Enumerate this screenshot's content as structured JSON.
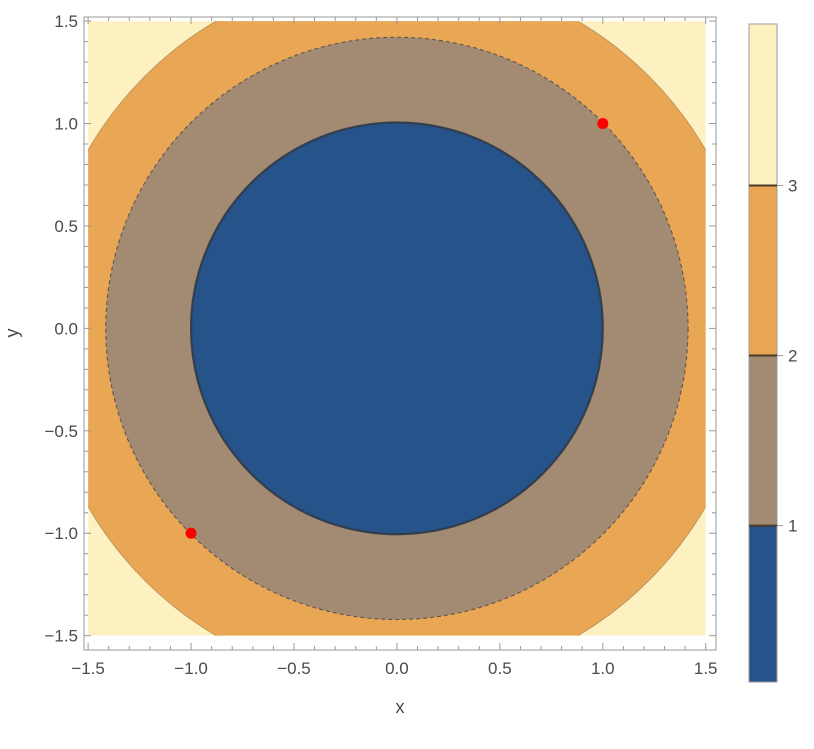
{
  "chart_data": {
    "type": "contour",
    "function": "x^2 + y^2",
    "xlabel": "x",
    "ylabel": "y",
    "xlim": [
      -1.52,
      1.55
    ],
    "ylim": [
      -1.57,
      1.52
    ],
    "plot_range": [
      [
        -1.5,
        1.5
      ],
      [
        -1.5,
        1.5
      ]
    ],
    "xticks": [
      -1.5,
      -1.0,
      -0.5,
      0.0,
      0.5,
      1.0,
      1.5
    ],
    "xtick_labels": [
      "−1.5",
      "−1.0",
      "−0.5",
      "0.0",
      "0.5",
      "1.0",
      "1.5"
    ],
    "yticks": [
      -1.5,
      -1.0,
      -0.5,
      0.0,
      0.5,
      1.0,
      1.5
    ],
    "ytick_labels": [
      "−1.5",
      "−1.0",
      "−0.5",
      "0.0",
      "0.5",
      "1.0",
      "1.5"
    ],
    "contour_levels": [
      1,
      2,
      3
    ],
    "contour_line_styles": [
      "solid",
      "dashed",
      "none"
    ],
    "bands": [
      {
        "range": [
          0,
          1
        ],
        "color": "#26538a"
      },
      {
        "range": [
          1,
          2
        ],
        "color": "#a38a73"
      },
      {
        "range": [
          2,
          3
        ],
        "color": "#e9a655"
      },
      {
        "range": [
          3,
          4.5
        ],
        "color": "#fdf1c2"
      }
    ],
    "points": [
      {
        "x": -1.0,
        "y": -1.0,
        "color": "#ff0000"
      },
      {
        "x": 1.0,
        "y": 1.0,
        "color": "#ff0000"
      }
    ],
    "legend": {
      "type": "colorbar",
      "placement": "right",
      "range": [
        0.08,
        3.95
      ],
      "ticks": [
        1,
        2,
        3
      ],
      "tick_labels": [
        "1",
        "2",
        "3"
      ]
    },
    "grid": false
  }
}
